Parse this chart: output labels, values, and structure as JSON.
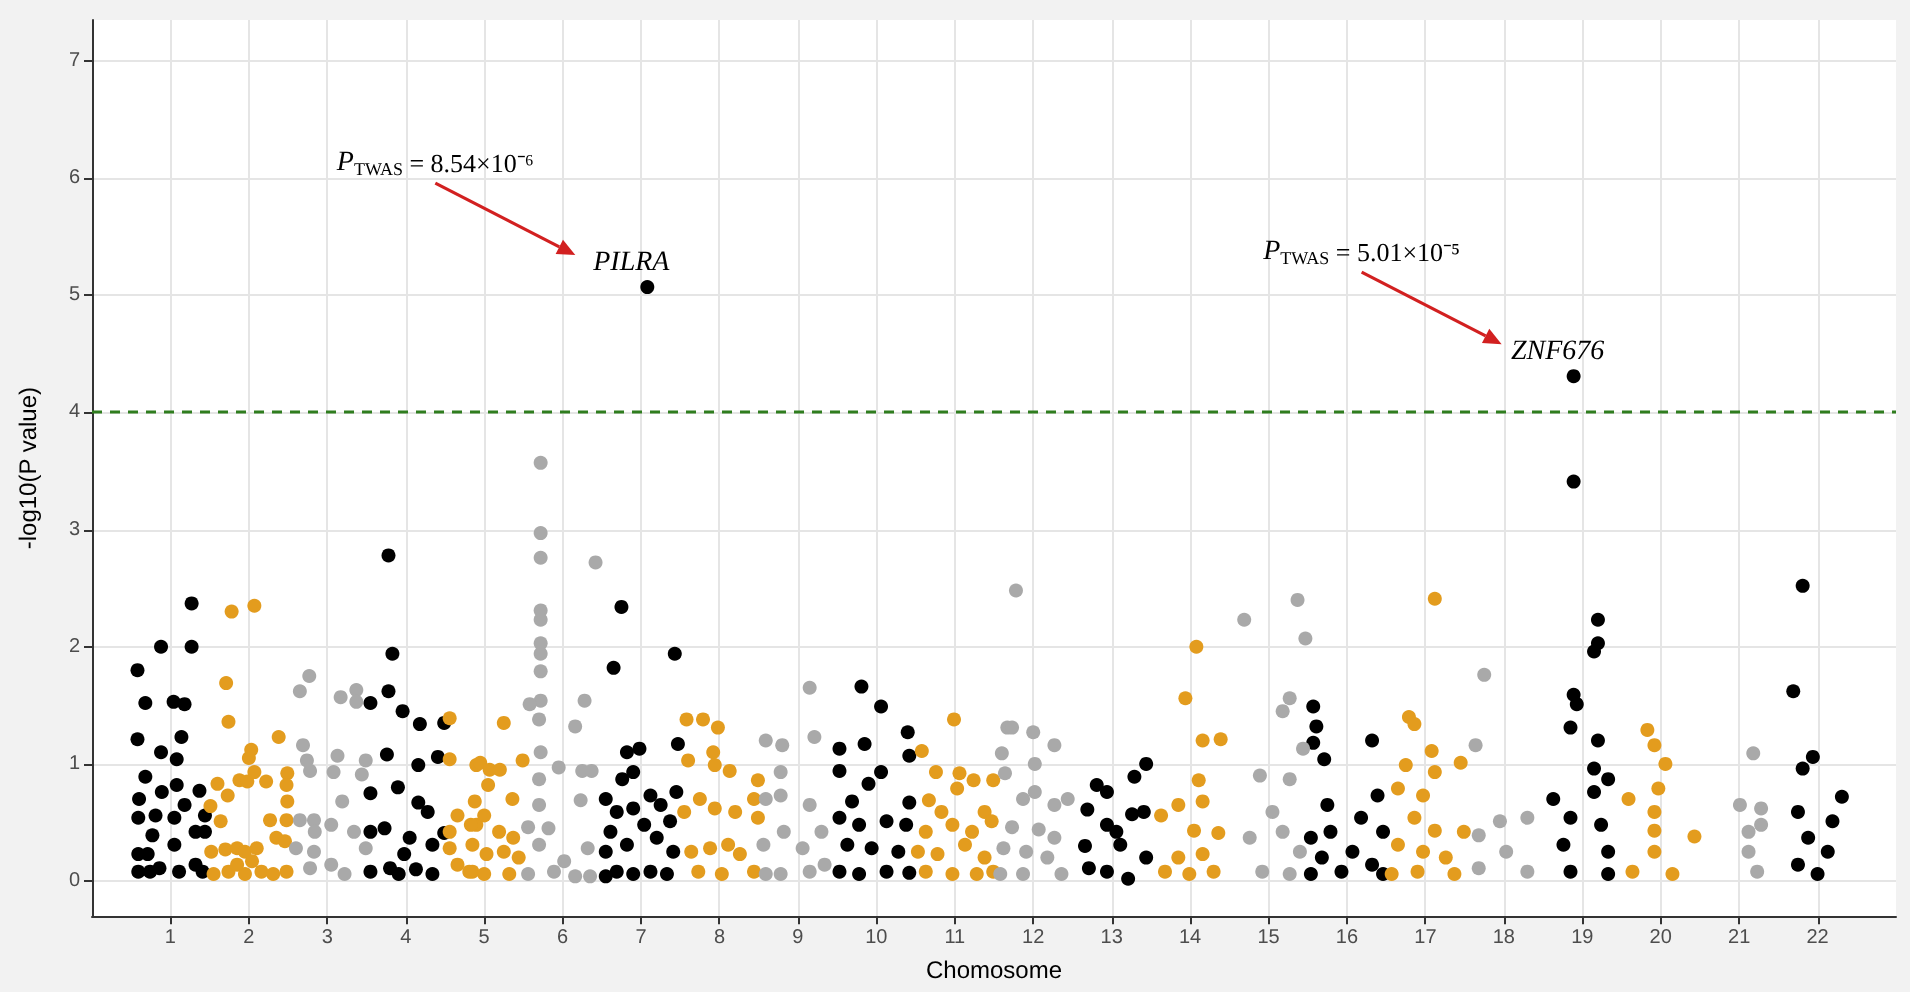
{
  "chart_data": {
    "type": "scatter",
    "xlabel": "Chomosome",
    "ylabel": "-log10(P value)",
    "xlim": [
      0,
      23
    ],
    "xticks": [
      1,
      2,
      3,
      4,
      5,
      6,
      7,
      8,
      9,
      10,
      11,
      12,
      13,
      14,
      15,
      16,
      17,
      18,
      19,
      20,
      21,
      22
    ],
    "ylim": [
      -0.3,
      7.35
    ],
    "yticks": [
      0,
      1,
      2,
      3,
      4,
      5,
      6,
      7
    ],
    "grid": true,
    "marker": "circle",
    "ref_lines": [
      {
        "axis": "y",
        "value": 4,
        "color": "#2f7d1e",
        "line_style": "dashed"
      }
    ],
    "annotations": [
      "P$_{TWAS}$ = 8.54×10⁻⁶",
      {
        "text": "PILRA",
        "x": 7.08,
        "y": 5.07
      },
      "P$_{TWAS}$ = 5.01×10⁻⁵",
      {
        "text": "ZNF676",
        "x": 18.89,
        "y": 4.31
      }
    ],
    "series": [
      {
        "color": "#000000",
        "x": [
          0.58,
          0.68,
          0.58,
          0.68,
          0.6,
          0.59,
          0.59,
          0.59,
          0.71,
          0.74,
          0.88,
          0.88,
          0.89,
          0.81,
          0.77,
          0.86,
          1.04,
          1.18,
          1.14,
          1.08,
          1.08,
          1.18,
          1.05,
          1.05,
          1.11,
          1.27,
          1.27,
          1.37,
          1.32,
          1.32,
          1.44,
          1.44,
          1.41,
          3.78,
          3.83,
          3.78,
          3.55,
          3.96,
          4.18,
          4.41,
          4.49,
          3.76,
          4.16,
          3.9,
          3.55,
          4.16,
          4.28,
          3.55,
          3.73,
          4.05,
          4.49,
          3.98,
          4.34,
          3.55,
          3.8,
          4.13,
          4.34,
          3.91,
          7.08,
          6.75,
          6.65,
          7.43,
          7.47,
          6.82,
          6.98,
          6.76,
          6.9,
          6.55,
          7.12,
          7.45,
          6.69,
          6.9,
          7.25,
          6.61,
          7.04,
          7.37,
          6.55,
          6.82,
          7.2,
          7.41,
          6.69,
          6.9,
          7.12,
          7.33,
          6.55,
          9.81,
          10.06,
          10.4,
          10.42,
          9.53,
          9.85,
          9.53,
          10.06,
          9.9,
          9.69,
          10.42,
          9.53,
          9.78,
          10.13,
          10.38,
          9.63,
          9.94,
          10.28,
          9.53,
          9.78,
          10.13,
          10.42,
          12.81,
          12.94,
          13.44,
          13.29,
          12.69,
          12.94,
          13.26,
          13.41,
          13.06,
          13.11,
          12.66,
          13.44,
          12.71,
          12.94,
          13.21,
          15.57,
          15.61,
          15.57,
          15.71,
          16.32,
          16.39,
          15.75,
          16.18,
          15.79,
          15.54,
          16.46,
          15.68,
          16.07,
          16.32,
          15.54,
          15.93,
          16.46,
          18.89,
          18.89,
          19.2,
          19.2,
          19.15,
          18.89,
          18.93,
          18.85,
          19.2,
          19.15,
          19.33,
          18.63,
          19.15,
          18.85,
          19.24,
          18.76,
          19.33,
          18.85,
          19.33,
          21.81,
          21.69,
          21.94,
          21.81,
          22.31,
          21.75,
          22.19,
          21.88,
          22.13,
          21.75,
          22.0
        ],
        "values": [
          1.8,
          1.52,
          1.21,
          0.89,
          0.7,
          0.54,
          0.23,
          0.08,
          0.23,
          0.08,
          2.0,
          1.1,
          0.76,
          0.56,
          0.39,
          0.11,
          1.53,
          1.51,
          1.23,
          1.04,
          0.82,
          0.65,
          0.54,
          0.31,
          0.08,
          2.37,
          2.0,
          0.77,
          0.42,
          0.14,
          0.56,
          0.42,
          0.08,
          2.78,
          1.94,
          1.62,
          1.52,
          1.45,
          1.34,
          1.06,
          1.35,
          1.08,
          0.99,
          0.8,
          0.75,
          0.67,
          0.59,
          0.42,
          0.45,
          0.37,
          0.41,
          0.23,
          0.31,
          0.08,
          0.11,
          0.1,
          0.06,
          0.06,
          5.07,
          2.34,
          1.82,
          1.94,
          1.17,
          1.1,
          1.13,
          0.87,
          0.93,
          0.7,
          0.73,
          0.76,
          0.59,
          0.62,
          0.65,
          0.42,
          0.48,
          0.51,
          0.25,
          0.31,
          0.37,
          0.25,
          0.08,
          0.06,
          0.08,
          0.06,
          0.04,
          1.66,
          1.49,
          1.27,
          1.07,
          1.13,
          1.17,
          0.94,
          0.93,
          0.83,
          0.68,
          0.67,
          0.54,
          0.48,
          0.51,
          0.48,
          0.31,
          0.28,
          0.25,
          0.08,
          0.06,
          0.08,
          0.07,
          0.82,
          0.76,
          1.0,
          0.89,
          0.61,
          0.48,
          0.57,
          0.59,
          0.42,
          0.31,
          0.3,
          0.2,
          0.11,
          0.08,
          0.02,
          1.49,
          1.32,
          1.18,
          1.04,
          1.2,
          0.73,
          0.65,
          0.54,
          0.42,
          0.37,
          0.42,
          0.2,
          0.25,
          0.14,
          0.06,
          0.08,
          0.06,
          4.31,
          3.41,
          2.23,
          2.03,
          1.96,
          1.59,
          1.51,
          1.31,
          1.2,
          0.96,
          0.87,
          0.7,
          0.76,
          0.54,
          0.48,
          0.31,
          0.25,
          0.08,
          0.06,
          2.52,
          1.62,
          1.06,
          0.96,
          0.72,
          0.59,
          0.51,
          0.37,
          0.25,
          0.14,
          0.06
        ]
      },
      {
        "color": "#e39c1e",
        "x": [
          1.78,
          2.07,
          1.71,
          1.74,
          2.0,
          2.03,
          2.38,
          1.6,
          1.73,
          1.88,
          1.98,
          2.07,
          2.22,
          2.49,
          2.48,
          2.49,
          1.51,
          1.64,
          2.27,
          2.48,
          1.52,
          1.7,
          1.85,
          1.95,
          2.1,
          2.35,
          2.46,
          1.55,
          1.74,
          1.95,
          2.16,
          2.31,
          2.48,
          1.85,
          2.04,
          4.56,
          4.56,
          4.9,
          4.66,
          4.9,
          4.56,
          4.56,
          4.66,
          4.85,
          5.25,
          4.95,
          5.07,
          5.2,
          5.49,
          4.88,
          5.05,
          5.36,
          4.83,
          5.0,
          5.19,
          5.37,
          4.85,
          5.03,
          5.25,
          5.44,
          4.81,
          5.0,
          5.32,
          7.58,
          7.79,
          7.98,
          7.6,
          7.92,
          7.94,
          8.13,
          8.49,
          8.44,
          7.75,
          7.55,
          7.94,
          8.2,
          8.49,
          7.64,
          7.88,
          8.11,
          8.26,
          7.73,
          8.03,
          8.44,
          10.99,
          10.58,
          10.76,
          11.06,
          11.24,
          11.49,
          10.67,
          10.83,
          11.03,
          11.38,
          10.63,
          10.97,
          11.22,
          11.47,
          10.53,
          10.78,
          11.13,
          11.38,
          10.63,
          10.97,
          11.28,
          11.49,
          14.08,
          13.94,
          14.16,
          14.39,
          14.11,
          14.16,
          13.85,
          13.63,
          14.05,
          14.36,
          13.85,
          14.16,
          14.3,
          13.68,
          13.99,
          17.12,
          16.79,
          16.86,
          17.08,
          16.75,
          17.12,
          17.45,
          16.65,
          16.97,
          16.86,
          17.12,
          17.49,
          16.65,
          16.97,
          17.26,
          16.57,
          16.9,
          17.37,
          19.83,
          19.92,
          20.06,
          19.59,
          19.97,
          19.92,
          20.43,
          19.92,
          19.92,
          19.64,
          20.15
        ],
        "values": [
          2.3,
          2.35,
          1.69,
          1.36,
          1.05,
          1.12,
          1.23,
          0.83,
          0.73,
          0.86,
          0.85,
          0.93,
          0.85,
          0.92,
          0.82,
          0.68,
          0.64,
          0.51,
          0.52,
          0.52,
          0.25,
          0.27,
          0.28,
          0.25,
          0.28,
          0.37,
          0.34,
          0.06,
          0.08,
          0.06,
          0.08,
          0.06,
          0.08,
          0.14,
          0.17,
          1.39,
          1.04,
          0.99,
          0.56,
          0.48,
          0.42,
          0.28,
          0.14,
          0.08,
          1.35,
          1.01,
          0.95,
          0.95,
          1.03,
          0.68,
          0.82,
          0.7,
          0.48,
          0.56,
          0.42,
          0.37,
          0.31,
          0.23,
          0.25,
          0.2,
          0.08,
          0.06,
          0.06,
          1.38,
          1.38,
          1.31,
          1.03,
          1.1,
          0.99,
          0.94,
          0.86,
          0.7,
          0.7,
          0.59,
          0.62,
          0.59,
          0.54,
          0.25,
          0.28,
          0.31,
          0.23,
          0.08,
          0.06,
          0.08,
          1.38,
          1.11,
          0.93,
          0.92,
          0.86,
          0.86,
          0.69,
          0.59,
          0.79,
          0.59,
          0.42,
          0.48,
          0.42,
          0.51,
          0.25,
          0.23,
          0.31,
          0.2,
          0.08,
          0.06,
          0.06,
          0.08,
          2.0,
          1.56,
          1.2,
          1.21,
          0.86,
          0.68,
          0.65,
          0.56,
          0.43,
          0.41,
          0.2,
          0.23,
          0.08,
          0.08,
          0.06,
          2.41,
          1.4,
          1.34,
          1.11,
          0.99,
          0.93,
          1.01,
          0.79,
          0.73,
          0.54,
          0.43,
          0.42,
          0.31,
          0.25,
          0.2,
          0.06,
          0.08,
          0.06,
          1.29,
          1.16,
          1.0,
          0.7,
          0.79,
          0.59,
          0.38,
          0.43,
          0.25,
          0.08,
          0.06
        ]
      },
      {
        "color": "#a9a9a9",
        "x": [
          2.77,
          2.65,
          3.17,
          3.37,
          3.37,
          2.69,
          2.74,
          2.78,
          3.13,
          3.08,
          3.49,
          3.44,
          2.65,
          2.83,
          2.84,
          3.19,
          3.05,
          3.34,
          2.6,
          2.83,
          3.05,
          3.22,
          2.78,
          3.49,
          5.72,
          5.72,
          5.72,
          5.72,
          5.72,
          5.72,
          5.72,
          5.72,
          5.72,
          5.58,
          5.7,
          6.42,
          6.28,
          6.16,
          5.72,
          5.95,
          5.7,
          6.25,
          6.37,
          5.7,
          6.23,
          5.56,
          5.82,
          5.7,
          6.02,
          6.32,
          5.56,
          5.89,
          6.16,
          6.35,
          8.59,
          8.8,
          8.78,
          8.78,
          8.59,
          9.15,
          9.21,
          8.56,
          8.82,
          9.15,
          9.3,
          9.06,
          8.59,
          8.78,
          9.15,
          9.34,
          11.67,
          11.78,
          11.6,
          11.73,
          12.0,
          12.27,
          11.64,
          12.02,
          12.02,
          11.87,
          12.27,
          12.44,
          11.73,
          12.07,
          12.27,
          11.62,
          11.91,
          12.18,
          11.58,
          11.87,
          12.36,
          15.37,
          14.69,
          15.47,
          15.27,
          15.18,
          15.44,
          14.89,
          15.27,
          15.05,
          14.76,
          15.18,
          15.4,
          14.92,
          15.27,
          17.75,
          17.64,
          17.68,
          17.95,
          18.3,
          18.03,
          17.68,
          18.3,
          21.18,
          21.01,
          21.28,
          21.12,
          21.28,
          21.12,
          21.23
        ],
        "values": [
          1.75,
          1.62,
          1.57,
          1.63,
          1.53,
          1.16,
          1.03,
          0.94,
          1.07,
          0.93,
          1.03,
          0.91,
          0.52,
          0.52,
          0.42,
          0.68,
          0.48,
          0.42,
          0.28,
          0.25,
          0.14,
          0.06,
          0.11,
          0.28,
          3.57,
          2.97,
          2.76,
          2.31,
          2.23,
          2.03,
          1.94,
          1.79,
          1.54,
          1.51,
          1.38,
          2.72,
          1.54,
          1.32,
          1.1,
          0.97,
          0.87,
          0.94,
          0.94,
          0.65,
          0.69,
          0.46,
          0.45,
          0.31,
          0.17,
          0.28,
          0.06,
          0.08,
          0.04,
          0.04,
          1.2,
          1.16,
          0.93,
          0.73,
          0.7,
          1.65,
          1.23,
          0.31,
          0.42,
          0.65,
          0.42,
          0.28,
          0.06,
          0.06,
          0.08,
          0.14,
          1.31,
          2.48,
          1.09,
          1.31,
          1.27,
          1.16,
          0.92,
          1.0,
          0.76,
          0.7,
          0.65,
          0.7,
          0.46,
          0.44,
          0.37,
          0.28,
          0.25,
          0.2,
          0.06,
          0.06,
          0.06,
          2.4,
          2.23,
          2.07,
          1.56,
          1.45,
          1.13,
          0.9,
          0.87,
          0.59,
          0.37,
          0.42,
          0.25,
          0.08,
          0.06,
          1.76,
          1.16,
          0.39,
          0.51,
          0.54,
          0.25,
          0.11,
          0.08,
          1.09,
          0.65,
          0.62,
          0.42,
          0.48,
          0.25,
          0.08
        ]
      }
    ]
  }
}
